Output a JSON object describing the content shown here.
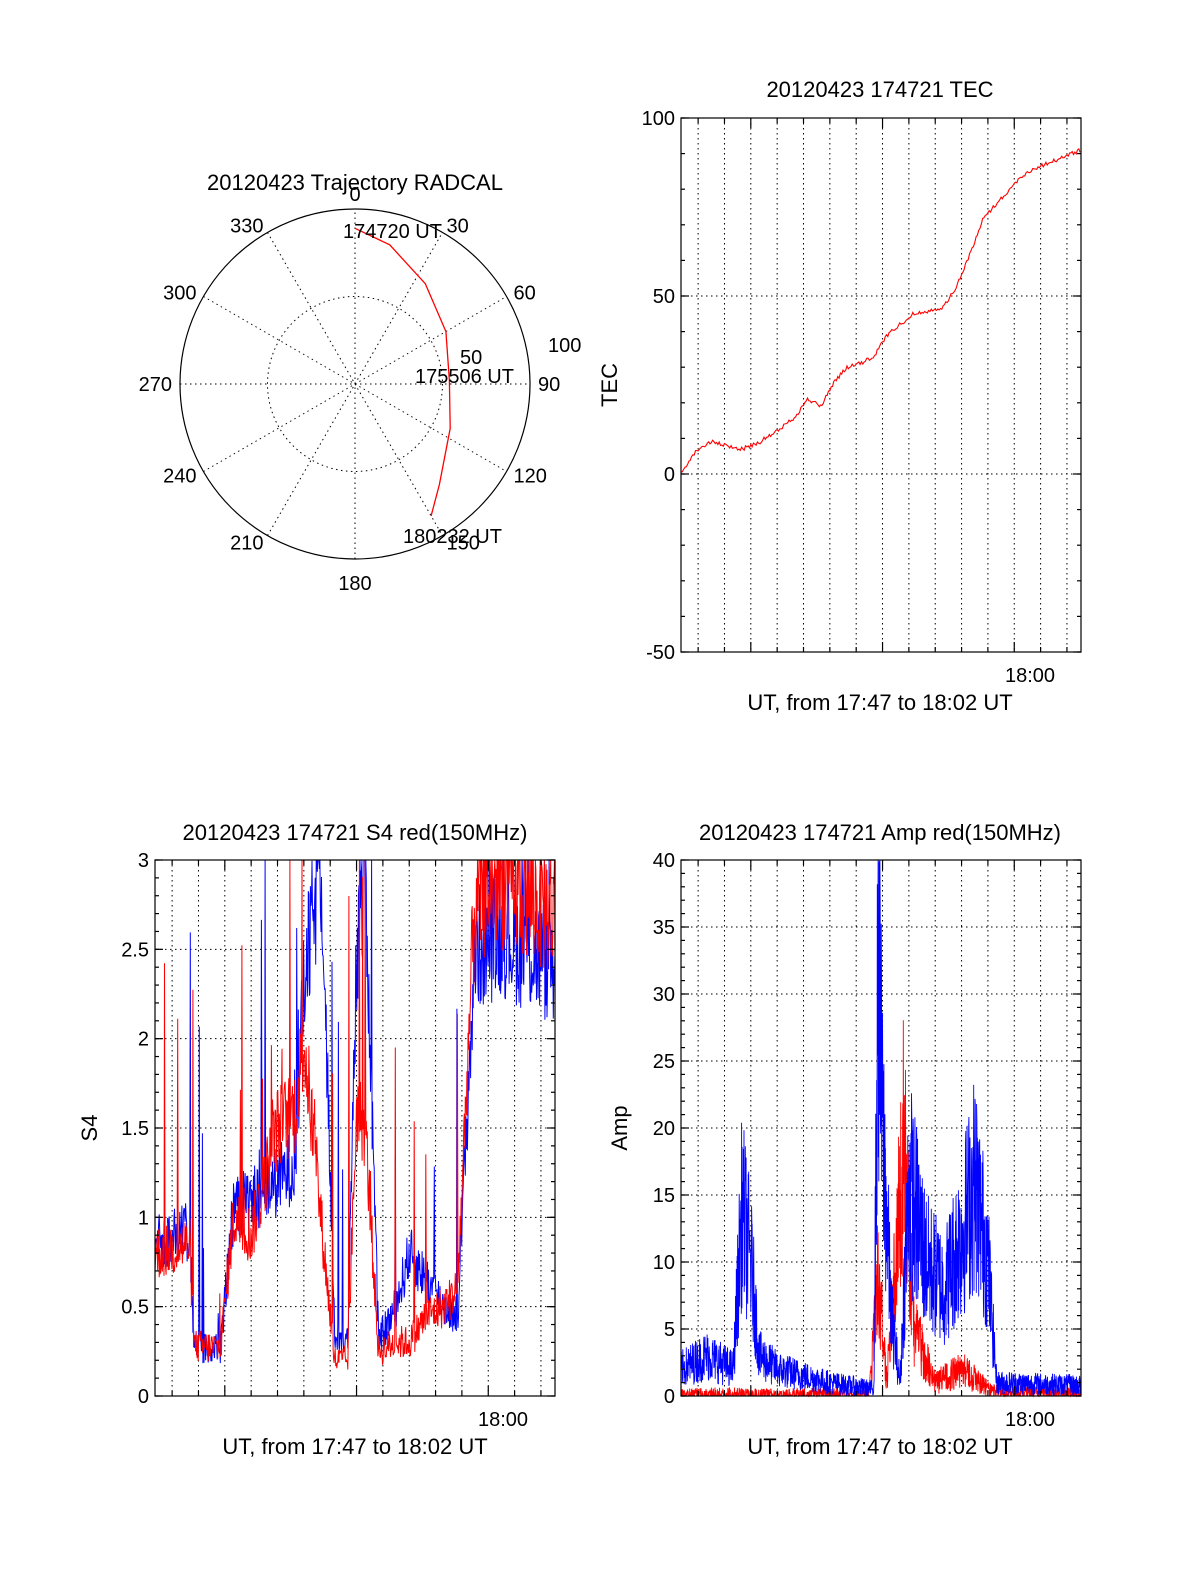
{
  "colors": {
    "red": "#ff0000",
    "blue": "#0000ff",
    "black": "#000000"
  },
  "chart_data": [
    {
      "type": "line",
      "subtype": "polar-trajectory",
      "title": "20120423 Trajectory RADCAL",
      "angle_labels": [
        "0",
        "30",
        "60",
        "90",
        "120",
        "150",
        "180",
        "210",
        "240",
        "270",
        "300",
        "330"
      ],
      "radius_labels": [
        "50",
        "100"
      ],
      "rlim": [
        0,
        100
      ],
      "grid": true,
      "annotations": [
        "174720 UT",
        "175506 UT",
        "180232 UT"
      ],
      "series": [
        {
          "color": "#ff0000",
          "points": [
            {
              "az": 0,
              "r": 89
            },
            {
              "az": 14,
              "r": 82
            },
            {
              "az": 35,
              "r": 70
            },
            {
              "az": 60,
              "r": 60
            },
            {
              "az": 88,
              "r": 54
            },
            {
              "az": 115,
              "r": 60
            },
            {
              "az": 140,
              "r": 75
            },
            {
              "az": 150,
              "r": 87
            }
          ]
        }
      ]
    },
    {
      "type": "line",
      "title": "20120423 174721 TEC",
      "xlabel": "UT, from 17:47 to 18:02 UT",
      "ylabel": "TEC",
      "xlim": [
        "17:47:21",
        "18:02:32"
      ],
      "ylim": [
        -50,
        100
      ],
      "yticks": [
        "-50",
        "0",
        "50",
        "100"
      ],
      "xtick_labels": [
        "18:00"
      ],
      "grid": true,
      "series": [
        {
          "color": "#ff0000",
          "points": [
            [
              "17:47:21",
              0
            ],
            [
              "17:47:40",
              4
            ],
            [
              "17:48:00",
              7
            ],
            [
              "17:48:30",
              9
            ],
            [
              "17:49:00",
              8
            ],
            [
              "17:49:40",
              7
            ],
            [
              "17:50:20",
              9
            ],
            [
              "17:51:00",
              12
            ],
            [
              "17:51:40",
              16
            ],
            [
              "17:52:10",
              21
            ],
            [
              "17:52:40",
              19
            ],
            [
              "17:53:10",
              26
            ],
            [
              "17:53:40",
              30
            ],
            [
              "17:54:10",
              31
            ],
            [
              "17:54:40",
              33
            ],
            [
              "17:55:10",
              39
            ],
            [
              "17:55:40",
              42
            ],
            [
              "17:56:10",
              45
            ],
            [
              "17:56:50",
              46
            ],
            [
              "17:57:20",
              47
            ],
            [
              "17:57:50",
              53
            ],
            [
              "17:58:20",
              62
            ],
            [
              "17:58:50",
              72
            ],
            [
              "17:59:20",
              76
            ],
            [
              "17:59:50",
              80
            ],
            [
              "18:00:20",
              84
            ],
            [
              "18:00:50",
              86
            ],
            [
              "18:01:30",
              88
            ],
            [
              "18:02:32",
              91
            ]
          ]
        }
      ]
    },
    {
      "type": "line",
      "title": "20120423 174721 S4 red(150MHz)",
      "xlabel": "UT, from 17:47 to 18:02 UT",
      "ylabel": "S4",
      "xlim": [
        "17:47:21",
        "18:02:32"
      ],
      "ylim": [
        0,
        3
      ],
      "yticks": [
        "0",
        "0.5",
        "1",
        "1.5",
        "2",
        "2.5",
        "3"
      ],
      "xtick_labels": [
        "18:00"
      ],
      "grid": true,
      "series": [
        {
          "color": "#0000ff",
          "points": [
            [
              "17:47:21",
              0.85
            ],
            [
              "17:47:50",
              0.88
            ],
            [
              "17:48:20",
              0.9
            ],
            [
              "17:48:40",
              0.92
            ],
            [
              "17:48:50",
              0.28
            ],
            [
              "17:49:50",
              0.27
            ],
            [
              "17:50:20",
              1.05
            ],
            [
              "17:51:00",
              1.1
            ],
            [
              "17:51:30",
              1.15
            ],
            [
              "17:52:00",
              1.2
            ],
            [
              "17:52:40",
              1.3
            ],
            [
              "17:53:00",
              2.3
            ],
            [
              "17:53:40",
              3.0
            ],
            [
              "17:54:10",
              0.35
            ],
            [
              "17:54:40",
              0.3
            ],
            [
              "17:55:00",
              2.4
            ],
            [
              "17:55:20",
              3.0
            ],
            [
              "17:55:50",
              0.3
            ],
            [
              "17:56:30",
              0.5
            ],
            [
              "17:57:00",
              0.8
            ],
            [
              "17:57:40",
              0.65
            ],
            [
              "17:58:20",
              0.5
            ],
            [
              "17:58:50",
              0.45
            ],
            [
              "17:59:30",
              2.5
            ],
            [
              "18:00:30",
              2.6
            ],
            [
              "18:02:32",
              2.4
            ]
          ]
        },
        {
          "color": "#ff0000",
          "points": [
            [
              "17:47:21",
              0.8
            ],
            [
              "17:48:40",
              0.85
            ],
            [
              "17:48:50",
              0.28
            ],
            [
              "17:49:50",
              0.27
            ],
            [
              "17:50:20",
              1.0
            ],
            [
              "17:51:00",
              0.9
            ],
            [
              "17:51:30",
              1.2
            ],
            [
              "17:52:00",
              1.5
            ],
            [
              "17:52:40",
              1.6
            ],
            [
              "17:53:00",
              2.0
            ],
            [
              "17:54:10",
              0.2
            ],
            [
              "17:54:40",
              0.2
            ],
            [
              "17:55:00",
              1.6
            ],
            [
              "17:55:20",
              1.5
            ],
            [
              "17:55:50",
              0.25
            ],
            [
              "17:56:30",
              0.3
            ],
            [
              "17:57:00",
              0.3
            ],
            [
              "17:57:40",
              0.45
            ],
            [
              "17:58:20",
              0.5
            ],
            [
              "17:58:50",
              0.6
            ],
            [
              "17:59:30",
              2.8
            ],
            [
              "18:00:30",
              2.9
            ],
            [
              "18:02:32",
              2.7
            ]
          ]
        }
      ]
    },
    {
      "type": "line",
      "title": "20120423 174721 Amp red(150MHz)",
      "xlabel": "UT, from 17:47 to 18:02 UT",
      "ylabel": "Amp",
      "xlim": [
        "17:47:21",
        "18:02:32"
      ],
      "ylim": [
        0,
        40
      ],
      "yticks": [
        "0",
        "5",
        "10",
        "15",
        "20",
        "25",
        "30",
        "35",
        "40"
      ],
      "xtick_labels": [
        "18:00"
      ],
      "grid": true,
      "series": [
        {
          "color": "#ff0000",
          "points": [
            [
              "17:47:21",
              0.1
            ],
            [
              "17:49:20",
              0.2
            ],
            [
              "17:50:00",
              0.1
            ],
            [
              "17:54:30",
              0.2
            ],
            [
              "17:54:50",
              9.0
            ],
            [
              "17:55:10",
              1.0
            ],
            [
              "17:55:50",
              20.0
            ],
            [
              "17:56:10",
              5.0
            ],
            [
              "17:57:00",
              1.0
            ],
            [
              "17:58:00",
              2.0
            ],
            [
              "17:59:10",
              0.3
            ],
            [
              "18:02:32",
              0.2
            ]
          ]
        },
        {
          "color": "#0000ff",
          "points": [
            [
              "17:47:21",
              2.0
            ],
            [
              "17:48:20",
              3.0
            ],
            [
              "17:49:20",
              2.0
            ],
            [
              "17:49:40",
              14.0
            ],
            [
              "17:50:00",
              10.0
            ],
            [
              "17:50:20",
              3.0
            ],
            [
              "17:51:00",
              2.0
            ],
            [
              "17:53:00",
              1.0
            ],
            [
              "17:54:40",
              0.5
            ],
            [
              "17:54:50",
              32.0
            ],
            [
              "17:55:00",
              20.0
            ],
            [
              "17:55:20",
              6.0
            ],
            [
              "17:55:40",
              1.0
            ],
            [
              "17:56:00",
              16.0
            ],
            [
              "17:56:40",
              10.0
            ],
            [
              "17:57:20",
              8.0
            ],
            [
              "17:58:00",
              12.0
            ],
            [
              "17:58:30",
              16.0
            ],
            [
              "17:59:00",
              10.0
            ],
            [
              "17:59:20",
              1.0
            ],
            [
              "18:02:32",
              0.8
            ]
          ]
        }
      ]
    }
  ]
}
